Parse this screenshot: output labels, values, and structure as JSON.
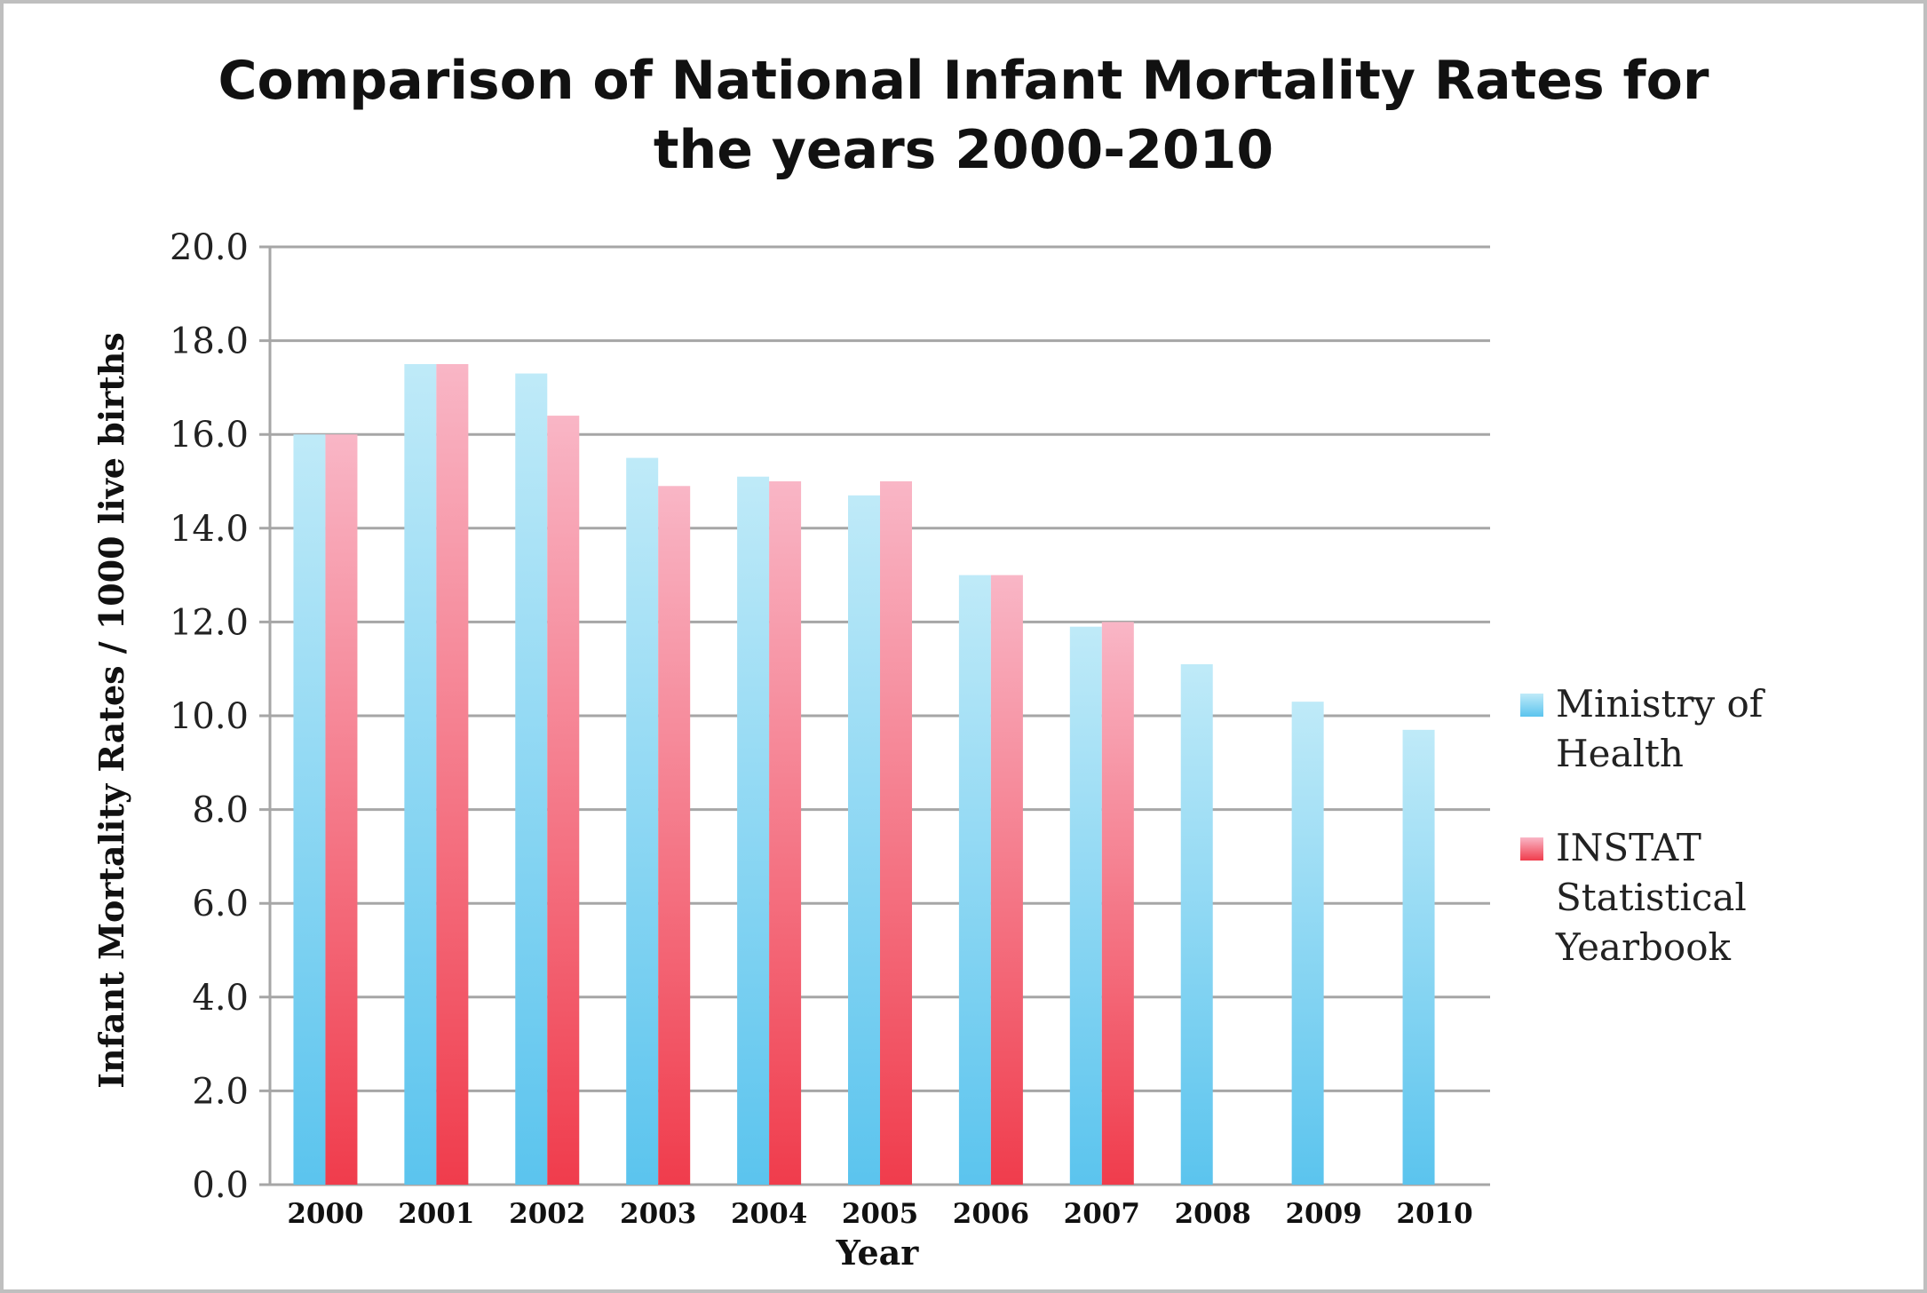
{
  "chart_data": {
    "type": "bar",
    "title": [
      "Comparison of National Infant Mortality Rates for",
      "the years 2000-2010"
    ],
    "xlabel": "Year",
    "ylabel": "Infant Mortality Rates / 1000 live births",
    "ylim": [
      0,
      20
    ],
    "yticks": [
      "0.0",
      "2.0",
      "4.0",
      "6.0",
      "8.0",
      "10.0",
      "12.0",
      "14.0",
      "16.0",
      "18.0",
      "20.0"
    ],
    "grid": true,
    "legend_position": "right",
    "categories": [
      "2000",
      "2001",
      "2002",
      "2003",
      "2004",
      "2005",
      "2006",
      "2007",
      "2008",
      "2009",
      "2010"
    ],
    "series": [
      {
        "name": "Ministry of Health",
        "color_top": "#bfeaf8",
        "color_bottom": "#5bc4ee",
        "values": [
          16.0,
          17.5,
          17.3,
          15.5,
          15.1,
          14.7,
          13.0,
          11.9,
          11.1,
          10.3,
          9.7
        ]
      },
      {
        "name": "INSTAT Statistical Yearbook",
        "color_top": "#f9b6c6",
        "color_bottom": "#f03c4c",
        "values": [
          16.0,
          17.5,
          16.4,
          14.9,
          15.0,
          15.0,
          13.0,
          12.0,
          null,
          null,
          null
        ]
      }
    ]
  }
}
